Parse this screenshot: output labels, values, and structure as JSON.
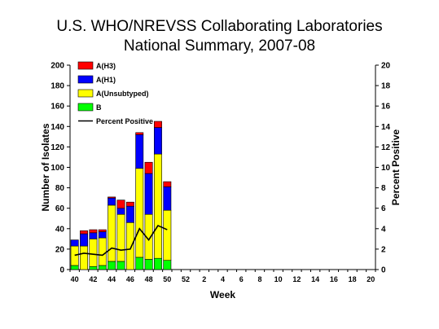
{
  "chart_data": {
    "type": "bar",
    "title": [
      "U.S. WHO/NREVSS Collaborating Laboratories",
      "National Summary, 2007-08"
    ],
    "xlabel": "Week",
    "ylabel": "Number of Isolates",
    "y2label": "Percent Positive",
    "ylim": [
      0,
      200
    ],
    "y2lim": [
      0,
      20
    ],
    "yticks": [
      "0",
      "20",
      "40",
      "60",
      "80",
      "100",
      "120",
      "140",
      "160",
      "180",
      "200"
    ],
    "y2ticks": [
      "0",
      "2",
      "4",
      "6",
      "8",
      "10",
      "12",
      "14",
      "16",
      "18",
      "20"
    ],
    "xtick_labels": [
      "40",
      "42",
      "44",
      "46",
      "48",
      "50",
      "52",
      "2",
      "4",
      "6",
      "8",
      "10",
      "12",
      "14",
      "16",
      "18",
      "20"
    ],
    "weeks": [
      40,
      41,
      42,
      43,
      44,
      45,
      46,
      47,
      48,
      49,
      50,
      51,
      52,
      1,
      2,
      3,
      4,
      5,
      6,
      7,
      8,
      9,
      10,
      11,
      12,
      13,
      14,
      15,
      16,
      17,
      18,
      19,
      20
    ],
    "stack_order": [
      "B",
      "A(Unsubtyped)",
      "A(H1)",
      "A(H3)"
    ],
    "series": [
      {
        "name": "A(H3)",
        "color": "#ff0000",
        "values": [
          0,
          3,
          3,
          2,
          1,
          8,
          4,
          2,
          11,
          6,
          5
        ]
      },
      {
        "name": "A(H1)",
        "color": "#0000ff",
        "values": [
          6,
          12,
          6,
          6,
          7,
          6,
          16,
          33,
          40,
          26,
          23
        ]
      },
      {
        "name": "A(Unsubtyped)",
        "color": "#ffff00",
        "values": [
          19,
          23,
          27,
          27,
          55,
          46,
          46,
          87,
          44,
          102,
          49
        ]
      },
      {
        "name": "B",
        "color": "#00ff00",
        "values": [
          4,
          0,
          3,
          4,
          8,
          8,
          0,
          12,
          10,
          11,
          9
        ]
      }
    ],
    "line": {
      "name": "Percent Positive",
      "color": "#000000",
      "values": [
        1.4,
        1.6,
        1.5,
        1.4,
        2.1,
        1.9,
        2.0,
        4.0,
        2.9,
        4.3,
        3.9
      ]
    },
    "legend_position": "top-left",
    "grid": false
  }
}
